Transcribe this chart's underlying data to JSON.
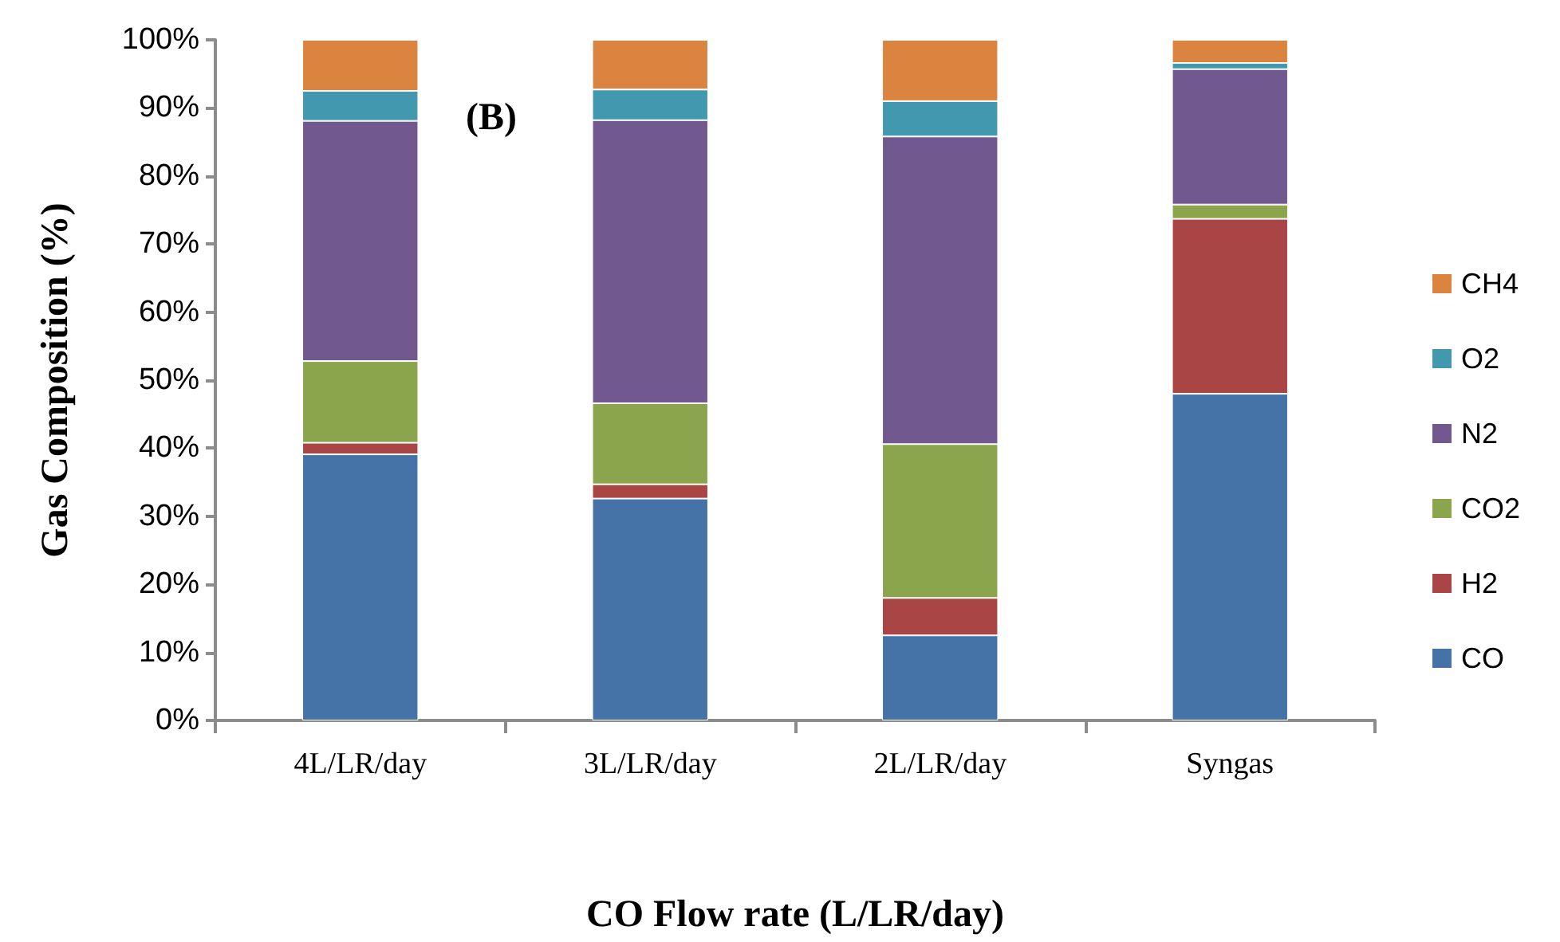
{
  "chart_data": {
    "type": "bar",
    "stacked": true,
    "xlabel": "CO Flow rate (L/LR/day)",
    "ylabel": "Gas Composition (%)",
    "categories": [
      "4L/LR/day",
      "3L/LR/day",
      "2L/LR/day",
      "Syngas"
    ],
    "series": [
      {
        "name": "CO",
        "color": "#4673a7",
        "values": [
          39.1,
          32.6,
          12.5,
          48.0
        ]
      },
      {
        "name": "H2",
        "color": "#a94645",
        "values": [
          1.7,
          2.1,
          5.5,
          25.7
        ]
      },
      {
        "name": "CO2",
        "color": "#8aa54c",
        "values": [
          12.0,
          11.9,
          22.6,
          2.1
        ]
      },
      {
        "name": "N2",
        "color": "#71588f",
        "values": [
          35.3,
          41.6,
          45.2,
          19.9
        ]
      },
      {
        "name": "O2",
        "color": "#4298ae",
        "values": [
          4.4,
          4.5,
          5.2,
          0.9
        ]
      },
      {
        "name": "CH4",
        "color": "#db8440",
        "values": [
          7.5,
          7.3,
          9.0,
          3.4
        ]
      }
    ],
    "ylim": [
      0,
      100
    ],
    "yticks": [
      {
        "value": 0,
        "label": "0%"
      },
      {
        "value": 10,
        "label": "10%"
      },
      {
        "value": 20,
        "label": "20%"
      },
      {
        "value": 30,
        "label": "30%"
      },
      {
        "value": 40,
        "label": "40%"
      },
      {
        "value": 50,
        "label": "50%"
      },
      {
        "value": 60,
        "label": "60%"
      },
      {
        "value": 70,
        "label": "70%"
      },
      {
        "value": 80,
        "label": "80%"
      },
      {
        "value": 90,
        "label": "90%"
      },
      {
        "value": 100,
        "label": "100%"
      }
    ],
    "annotations": [
      "(B)"
    ],
    "grid": false,
    "legend": "right"
  }
}
